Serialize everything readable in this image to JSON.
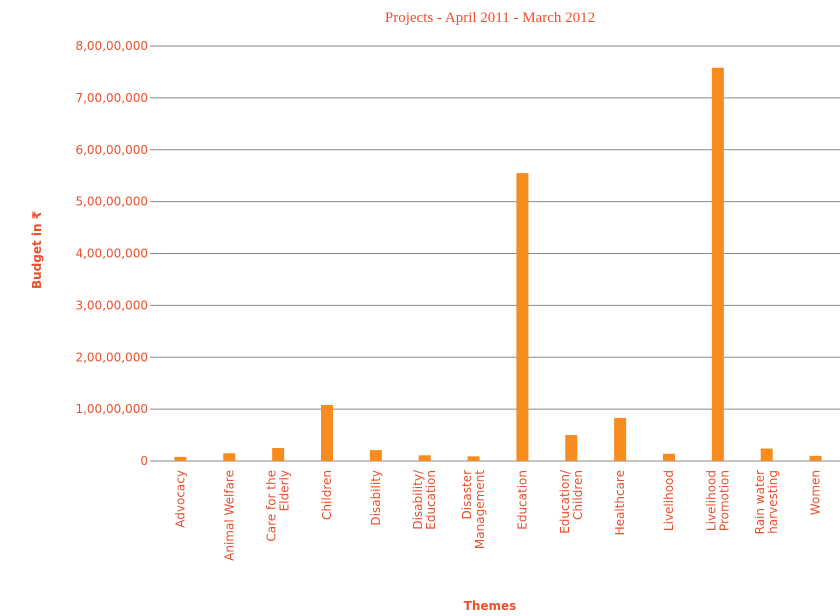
{
  "chart_data": {
    "type": "bar",
    "title": "Projects - April 2011 - March 2012",
    "x_label": "Themes",
    "y_label": "Budget in ₹",
    "categories": [
      "Advocacy",
      "Animal Welfare",
      "Care for the\nElderly",
      "Children",
      "Disability",
      "Disability/\nEducation",
      "Disaster\nManagement",
      "Education",
      "Education/\nChildren",
      "Healthcare",
      "Livelihood",
      "Livelihood\nPromotion",
      "Rain water\nharvesting",
      "Women"
    ],
    "values": [
      800000,
      1500000,
      2500000,
      10800000,
      2100000,
      1100000,
      900000,
      55500000,
      5000000,
      8300000,
      1400000,
      75800000,
      2400000,
      1000000
    ],
    "color": "#f68b1f",
    "ylim": [
      0,
      80000000
    ],
    "yticks": [
      0,
      {
        "value": 10000000,
        "label": "1,00,00,000"
      },
      {
        "value": 20000000,
        "label": "2,00,00,000"
      },
      {
        "value": 30000000,
        "label": "3,00,00,000"
      },
      {
        "value": 40000000,
        "label": "4,00,00,000"
      },
      {
        "value": 50000000,
        "label": "5,00,00,000"
      },
      {
        "value": 60000000,
        "label": "6,00,00,000"
      },
      {
        "value": 70000000,
        "label": "7,00,00,000"
      },
      {
        "value": 80000000,
        "label": "8,00,00,000"
      }
    ],
    "grid": true
  }
}
